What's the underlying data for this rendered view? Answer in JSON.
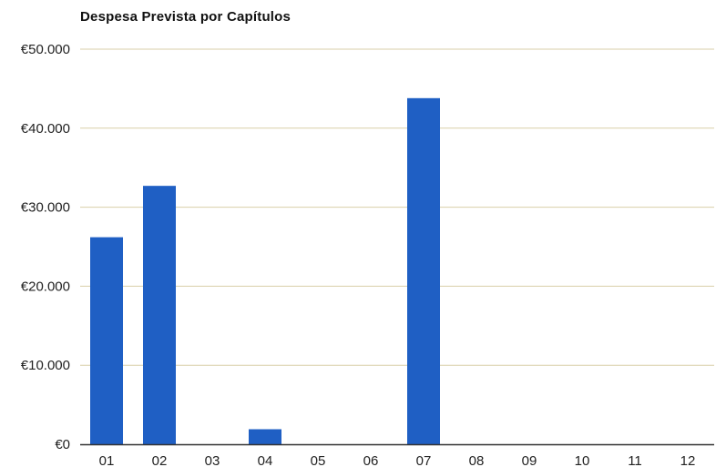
{
  "chart_data": {
    "type": "bar",
    "title": "Despesa Prevista por Capítulos",
    "xlabel": "",
    "ylabel": "",
    "categories": [
      "01",
      "02",
      "03",
      "04",
      "05",
      "06",
      "07",
      "08",
      "09",
      "10",
      "11",
      "12"
    ],
    "values": [
      26200,
      32700,
      0,
      1900,
      0,
      0,
      43800,
      0,
      0,
      0,
      0,
      0
    ],
    "ylim": [
      0,
      50000
    ],
    "yticks": [
      0,
      10000,
      20000,
      30000,
      40000,
      50000
    ],
    "ytick_labels": [
      "€0",
      "€10.000",
      "€20.000",
      "€30.000",
      "€40.000",
      "€50.000"
    ],
    "grid": true,
    "legend": "none",
    "colors": {
      "bar": "#1f5fc4",
      "grid": "#d9cfa8",
      "axis": "#333333",
      "text": "#222222"
    }
  }
}
